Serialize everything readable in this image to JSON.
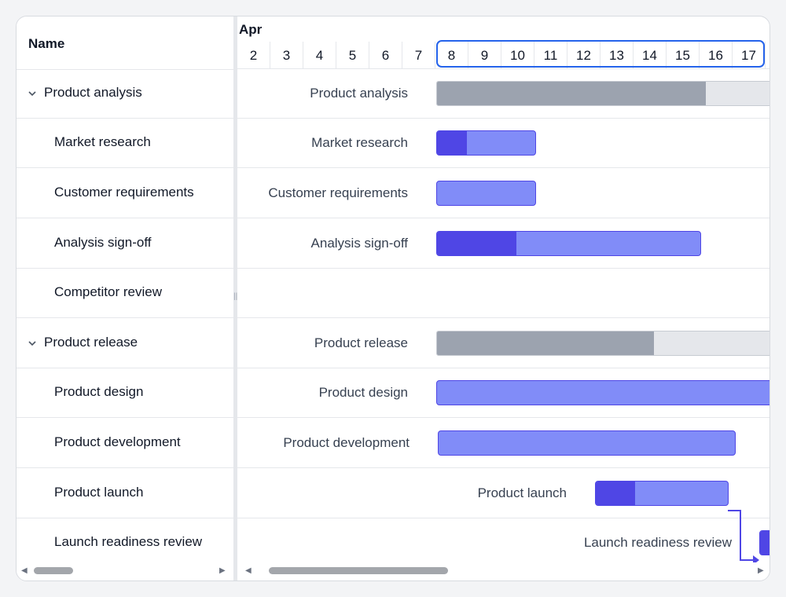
{
  "grid": {
    "header": "Name",
    "rows": [
      {
        "name": "Product analysis",
        "group": true
      },
      {
        "name": "Market research",
        "group": false
      },
      {
        "name": "Customer requirements",
        "group": false
      },
      {
        "name": "Analysis sign-off",
        "group": false
      },
      {
        "name": "Competitor review",
        "group": false
      },
      {
        "name": "Product release",
        "group": true
      },
      {
        "name": "Product design",
        "group": false
      },
      {
        "name": "Product development",
        "group": false
      },
      {
        "name": "Product launch",
        "group": false
      },
      {
        "name": "Launch readiness review",
        "group": false
      }
    ]
  },
  "timeline": {
    "month": "Apr",
    "days": [
      "2",
      "3",
      "4",
      "5",
      "6",
      "7",
      "8",
      "9",
      "10",
      "11",
      "12",
      "13",
      "14",
      "15",
      "16",
      "17"
    ],
    "selected_range": [
      "8",
      "17"
    ],
    "bars": [
      {
        "label": "Product analysis",
        "type": "summary",
        "progress": 0.78
      },
      {
        "label": "Market research",
        "type": "task",
        "progress": 0.3
      },
      {
        "label": "Customer requirements",
        "type": "task",
        "progress": 0
      },
      {
        "label": "Analysis sign-off",
        "type": "task",
        "progress": 0.3
      },
      {
        "label": "",
        "type": "none"
      },
      {
        "label": "Product release",
        "type": "summary",
        "progress": 0.63
      },
      {
        "label": "Product design",
        "type": "task",
        "progress": 0
      },
      {
        "label": "Product development",
        "type": "task",
        "progress": 0
      },
      {
        "label": "Product launch",
        "type": "task",
        "progress": 0.3
      },
      {
        "label": "Launch readiness review",
        "type": "milestone",
        "progress": 1
      }
    ]
  },
  "colors": {
    "accent": "#4f46e5",
    "task_fill": "#818cf8",
    "summary_fill": "#e5e7eb",
    "summary_progress": "#9ca3af",
    "selection": "#2563eb"
  }
}
